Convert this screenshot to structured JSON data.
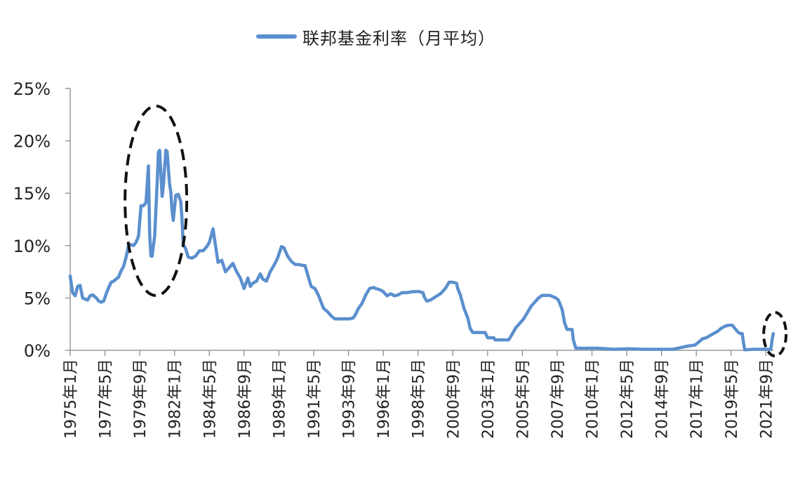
{
  "colors": {
    "series": "#5b8fce",
    "axis": "#9a9a9a",
    "annotation": "#111111"
  },
  "chart_data": {
    "type": "line",
    "title": "",
    "xlabel": "",
    "ylabel": "",
    "legend_position": "top-center",
    "grid": false,
    "ylim": [
      0,
      25
    ],
    "y_unit": "%",
    "y_ticks": [
      "0%",
      "5%",
      "10%",
      "15%",
      "20%",
      "25%"
    ],
    "x_range": [
      "1975-01",
      "2022-03"
    ],
    "x_ticks": [
      {
        "date": "1975-01",
        "label": "1975年1月"
      },
      {
        "date": "1977-05",
        "label": "1977年5月"
      },
      {
        "date": "1979-09",
        "label": "1979年9月"
      },
      {
        "date": "1982-01",
        "label": "1982年1月"
      },
      {
        "date": "1984-05",
        "label": "1984年5月"
      },
      {
        "date": "1986-09",
        "label": "1986年9月"
      },
      {
        "date": "1989-01",
        "label": "1989年1月"
      },
      {
        "date": "1991-05",
        "label": "1991年5月"
      },
      {
        "date": "1993-09",
        "label": "1993年9月"
      },
      {
        "date": "1996-01",
        "label": "1996年1月"
      },
      {
        "date": "1998-05",
        "label": "1998年5月"
      },
      {
        "date": "2000-09",
        "label": "2000年9月"
      },
      {
        "date": "2003-01",
        "label": "2003年1月"
      },
      {
        "date": "2005-05",
        "label": "2005年5月"
      },
      {
        "date": "2007-09",
        "label": "2007年9月"
      },
      {
        "date": "2010-01",
        "label": "2010年1月"
      },
      {
        "date": "2012-05",
        "label": "2012年5月"
      },
      {
        "date": "2014-09",
        "label": "2014年9月"
      },
      {
        "date": "2017-01",
        "label": "2017年1月"
      },
      {
        "date": "2019-05",
        "label": "2019年5月"
      },
      {
        "date": "2021-09",
        "label": "2021年9月"
      }
    ],
    "series": [
      {
        "name": "联邦基金利率（月平均）",
        "points": [
          [
            "1975-01",
            7.1
          ],
          [
            "1975-03",
            5.5
          ],
          [
            "1975-05",
            5.2
          ],
          [
            "1975-07",
            6.1
          ],
          [
            "1975-09",
            6.2
          ],
          [
            "1975-11",
            5.0
          ],
          [
            "1976-01",
            4.9
          ],
          [
            "1976-03",
            4.8
          ],
          [
            "1976-05",
            5.2
          ],
          [
            "1976-07",
            5.3
          ],
          [
            "1976-10",
            5.0
          ],
          [
            "1976-12",
            4.7
          ],
          [
            "1977-02",
            4.6
          ],
          [
            "1977-04",
            4.7
          ],
          [
            "1977-06",
            5.4
          ],
          [
            "1977-08",
            6.0
          ],
          [
            "1977-10",
            6.5
          ],
          [
            "1977-12",
            6.6
          ],
          [
            "1978-02",
            6.8
          ],
          [
            "1978-04",
            7.0
          ],
          [
            "1978-06",
            7.6
          ],
          [
            "1978-08",
            8.0
          ],
          [
            "1978-10",
            8.9
          ],
          [
            "1978-12",
            10.0
          ],
          [
            "1979-02",
            10.1
          ],
          [
            "1979-04",
            10.0
          ],
          [
            "1979-06",
            10.3
          ],
          [
            "1979-08",
            10.9
          ],
          [
            "1979-10",
            13.8
          ],
          [
            "1979-12",
            13.8
          ],
          [
            "1980-02",
            14.1
          ],
          [
            "1980-04",
            17.6
          ],
          [
            "1980-05",
            11.0
          ],
          [
            "1980-06",
            9.0
          ],
          [
            "1980-07",
            9.0
          ],
          [
            "1980-09",
            10.9
          ],
          [
            "1980-11",
            15.9
          ],
          [
            "1980-12",
            18.9
          ],
          [
            "1981-01",
            19.1
          ],
          [
            "1981-03",
            14.7
          ],
          [
            "1981-04",
            15.7
          ],
          [
            "1981-06",
            19.1
          ],
          [
            "1981-07",
            19.0
          ],
          [
            "1981-09",
            15.9
          ],
          [
            "1981-10",
            15.1
          ],
          [
            "1981-11",
            13.3
          ],
          [
            "1981-12",
            12.4
          ],
          [
            "1982-02",
            14.8
          ],
          [
            "1982-04",
            14.9
          ],
          [
            "1982-06",
            14.2
          ],
          [
            "1982-07",
            12.6
          ],
          [
            "1982-08",
            10.1
          ],
          [
            "1982-10",
            9.7
          ],
          [
            "1982-12",
            8.9
          ],
          [
            "1983-03",
            8.8
          ],
          [
            "1983-06",
            9.0
          ],
          [
            "1983-09",
            9.5
          ],
          [
            "1983-12",
            9.5
          ],
          [
            "1984-03",
            9.9
          ],
          [
            "1984-05",
            10.3
          ],
          [
            "1984-08",
            11.6
          ],
          [
            "1984-10",
            10.0
          ],
          [
            "1984-12",
            8.4
          ],
          [
            "1985-03",
            8.6
          ],
          [
            "1985-06",
            7.5
          ],
          [
            "1985-09",
            7.9
          ],
          [
            "1985-12",
            8.3
          ],
          [
            "1986-03",
            7.5
          ],
          [
            "1986-06",
            6.9
          ],
          [
            "1986-09",
            5.9
          ],
          [
            "1986-12",
            6.9
          ],
          [
            "1987-02",
            6.1
          ],
          [
            "1987-04",
            6.4
          ],
          [
            "1987-07",
            6.6
          ],
          [
            "1987-10",
            7.3
          ],
          [
            "1987-12",
            6.8
          ],
          [
            "1988-03",
            6.6
          ],
          [
            "1988-06",
            7.5
          ],
          [
            "1988-09",
            8.1
          ],
          [
            "1988-12",
            8.8
          ],
          [
            "1989-03",
            9.9
          ],
          [
            "1989-05",
            9.8
          ],
          [
            "1989-08",
            9.0
          ],
          [
            "1989-11",
            8.5
          ],
          [
            "1990-02",
            8.2
          ],
          [
            "1990-05",
            8.2
          ],
          [
            "1990-08",
            8.1
          ],
          [
            "1990-10",
            8.1
          ],
          [
            "1990-12",
            7.3
          ],
          [
            "1991-01",
            6.9
          ],
          [
            "1991-03",
            6.1
          ],
          [
            "1991-06",
            5.9
          ],
          [
            "1991-09",
            5.2
          ],
          [
            "1991-11",
            4.6
          ],
          [
            "1992-01",
            4.0
          ],
          [
            "1992-04",
            3.7
          ],
          [
            "1992-07",
            3.3
          ],
          [
            "1992-10",
            3.0
          ],
          [
            "1993-01",
            3.0
          ],
          [
            "1993-06",
            3.0
          ],
          [
            "1993-10",
            3.0
          ],
          [
            "1994-01",
            3.1
          ],
          [
            "1994-03",
            3.5
          ],
          [
            "1994-05",
            4.0
          ],
          [
            "1994-08",
            4.5
          ],
          [
            "1994-11",
            5.3
          ],
          [
            "1995-02",
            5.9
          ],
          [
            "1995-05",
            6.0
          ],
          [
            "1995-07",
            5.9
          ],
          [
            "1995-10",
            5.8
          ],
          [
            "1996-01",
            5.6
          ],
          [
            "1996-04",
            5.2
          ],
          [
            "1996-07",
            5.4
          ],
          [
            "1996-10",
            5.2
          ],
          [
            "1997-01",
            5.3
          ],
          [
            "1997-04",
            5.5
          ],
          [
            "1997-08",
            5.5
          ],
          [
            "1998-01",
            5.6
          ],
          [
            "1998-06",
            5.6
          ],
          [
            "1998-09",
            5.5
          ],
          [
            "1998-10",
            5.1
          ],
          [
            "1998-12",
            4.7
          ],
          [
            "1999-03",
            4.8
          ],
          [
            "1999-07",
            5.1
          ],
          [
            "1999-11",
            5.4
          ],
          [
            "2000-03",
            5.9
          ],
          [
            "2000-06",
            6.5
          ],
          [
            "2000-09",
            6.5
          ],
          [
            "2000-12",
            6.4
          ],
          [
            "2001-01",
            5.9
          ],
          [
            "2001-03",
            5.3
          ],
          [
            "2001-06",
            4.0
          ],
          [
            "2001-09",
            3.1
          ],
          [
            "2001-11",
            2.1
          ],
          [
            "2002-01",
            1.7
          ],
          [
            "2002-06",
            1.7
          ],
          [
            "2002-11",
            1.7
          ],
          [
            "2003-01",
            1.2
          ],
          [
            "2003-06",
            1.2
          ],
          [
            "2003-07",
            1.0
          ],
          [
            "2004-01",
            1.0
          ],
          [
            "2004-06",
            1.0
          ],
          [
            "2004-08",
            1.4
          ],
          [
            "2004-12",
            2.2
          ],
          [
            "2005-03",
            2.6
          ],
          [
            "2005-06",
            3.0
          ],
          [
            "2005-09",
            3.6
          ],
          [
            "2005-12",
            4.2
          ],
          [
            "2006-03",
            4.6
          ],
          [
            "2006-06",
            5.0
          ],
          [
            "2006-09",
            5.25
          ],
          [
            "2007-03",
            5.25
          ],
          [
            "2007-08",
            5.0
          ],
          [
            "2007-10",
            4.8
          ],
          [
            "2007-12",
            4.2
          ],
          [
            "2008-01",
            3.9
          ],
          [
            "2008-03",
            2.6
          ],
          [
            "2008-05",
            2.0
          ],
          [
            "2008-09",
            2.0
          ],
          [
            "2008-10",
            1.0
          ],
          [
            "2008-12",
            0.2
          ],
          [
            "2009-06",
            0.2
          ],
          [
            "2010-06",
            0.2
          ],
          [
            "2011-06",
            0.1
          ],
          [
            "2012-06",
            0.15
          ],
          [
            "2013-06",
            0.1
          ],
          [
            "2014-06",
            0.1
          ],
          [
            "2015-06",
            0.1
          ],
          [
            "2015-12",
            0.25
          ],
          [
            "2016-06",
            0.4
          ],
          [
            "2016-12",
            0.5
          ],
          [
            "2017-03",
            0.8
          ],
          [
            "2017-06",
            1.1
          ],
          [
            "2017-09",
            1.2
          ],
          [
            "2017-12",
            1.4
          ],
          [
            "2018-03",
            1.6
          ],
          [
            "2018-06",
            1.8
          ],
          [
            "2018-09",
            2.1
          ],
          [
            "2018-12",
            2.3
          ],
          [
            "2019-03",
            2.4
          ],
          [
            "2019-06",
            2.4
          ],
          [
            "2019-08",
            2.1
          ],
          [
            "2019-10",
            1.8
          ],
          [
            "2019-12",
            1.6
          ],
          [
            "2020-02",
            1.6
          ],
          [
            "2020-03",
            0.7
          ],
          [
            "2020-04",
            0.05
          ],
          [
            "2020-12",
            0.1
          ],
          [
            "2021-06",
            0.1
          ],
          [
            "2021-12",
            0.1
          ],
          [
            "2022-01",
            0.1
          ],
          [
            "2022-02",
            1.0
          ],
          [
            "2022-03",
            1.6
          ]
        ]
      }
    ]
  }
}
